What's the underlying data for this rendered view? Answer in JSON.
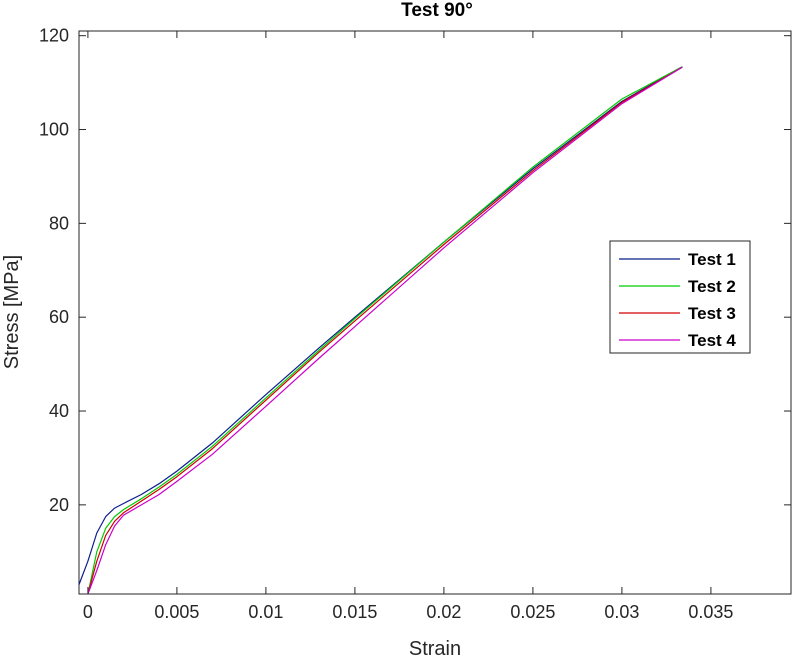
{
  "chart_data": {
    "type": "line",
    "title": "Test 90°",
    "xlabel": "Strain",
    "ylabel": "Stress [MPa]",
    "xlim": [
      -0.0005,
      0.0395
    ],
    "ylim": [
      1,
      121
    ],
    "xticks": [
      0,
      0.005,
      0.01,
      0.015,
      0.02,
      0.025,
      0.03,
      0.035
    ],
    "xtick_labels": [
      "0",
      "0.005",
      "0.01",
      "0.015",
      "0.02",
      "0.025",
      "0.03",
      "0.035"
    ],
    "yticks": [
      20,
      40,
      60,
      80,
      100,
      120
    ],
    "ytick_labels": [
      "20",
      "40",
      "60",
      "80",
      "100",
      "120"
    ],
    "grid": false,
    "legend_position": "right",
    "series": [
      {
        "name": "Test 1",
        "color": "#0b1f8a",
        "x": [
          -0.0005,
          0,
          0.0005,
          0.001,
          0.0015,
          0.002,
          0.003,
          0.004,
          0.005,
          0.007,
          0.01,
          0.013,
          0.015,
          0.02,
          0.025,
          0.03,
          0.0333
        ],
        "y": [
          3,
          8,
          14,
          17.5,
          19.3,
          20.3,
          22.2,
          24.5,
          27.2,
          33.2,
          43.5,
          53.5,
          60,
          76,
          91.6,
          106,
          113.2
        ]
      },
      {
        "name": "Test 2",
        "color": "#00cc00",
        "x": [
          0,
          0.0005,
          0.001,
          0.0015,
          0.002,
          0.003,
          0.004,
          0.005,
          0.007,
          0.01,
          0.013,
          0.015,
          0.02,
          0.025,
          0.03,
          0.0334
        ],
        "y": [
          1,
          10,
          15,
          17.5,
          19,
          21.3,
          23.8,
          26.5,
          32.5,
          42.8,
          53,
          59.7,
          76,
          92,
          106.5,
          113.4
        ]
      },
      {
        "name": "Test 3",
        "color": "#d00000",
        "x": [
          0,
          0.0005,
          0.001,
          0.0015,
          0.002,
          0.003,
          0.004,
          0.005,
          0.007,
          0.01,
          0.013,
          0.015,
          0.02,
          0.025,
          0.03,
          0.0334
        ],
        "y": [
          1,
          8,
          13.5,
          16.5,
          18.3,
          20.8,
          23.3,
          26,
          32,
          42.3,
          52.6,
          59.2,
          75.5,
          91.2,
          105.8,
          113.3
        ]
      },
      {
        "name": "Test 4",
        "color": "#cc00cc",
        "x": [
          0,
          0.0005,
          0.001,
          0.0015,
          0.002,
          0.003,
          0.004,
          0.005,
          0.007,
          0.01,
          0.013,
          0.015,
          0.02,
          0.025,
          0.03,
          0.0334
        ],
        "y": [
          1,
          6,
          11.5,
          15.5,
          17.8,
          20,
          22.2,
          25,
          30.8,
          41,
          51.3,
          58,
          74.8,
          90.8,
          105.5,
          113.3
        ]
      }
    ]
  }
}
